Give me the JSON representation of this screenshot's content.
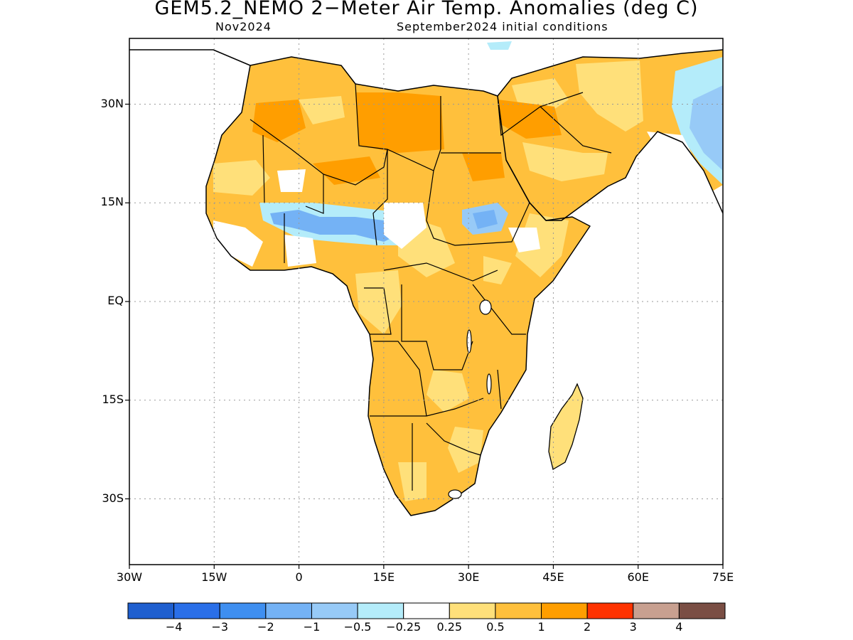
{
  "title": "GEM5.2_NEMO 2−Meter Air Temp. Anomalies (deg C)",
  "subtitle_left": "Nov2024",
  "subtitle_right": "September2024 initial conditions",
  "y_ticks": [
    {
      "label": "30N",
      "lat": 30
    },
    {
      "label": "15N",
      "lat": 15
    },
    {
      "label": "EQ",
      "lat": 0
    },
    {
      "label": "15S",
      "lat": -15
    },
    {
      "label": "30S",
      "lat": -30
    }
  ],
  "x_ticks": [
    {
      "label": "30W",
      "lon": -30
    },
    {
      "label": "15W",
      "lon": -15
    },
    {
      "label": "0",
      "lon": 0
    },
    {
      "label": "15E",
      "lon": 15
    },
    {
      "label": "30E",
      "lon": 30
    },
    {
      "label": "45E",
      "lon": 45
    },
    {
      "label": "60E",
      "lon": 60
    },
    {
      "label": "75E",
      "lon": 75
    }
  ],
  "map_extent": {
    "lon_min": -30,
    "lon_max": 75,
    "lat_min": -40,
    "lat_max": 40
  },
  "colorbar": {
    "colors": [
      "#1f5fcf",
      "#2a6fe8",
      "#3f8ff0",
      "#74b2f5",
      "#97caf7",
      "#b4ecfa",
      "#ffffff",
      "#ffe07a",
      "#ffc03c",
      "#ff9e00",
      "#ff3300",
      "#c8a090",
      "#7a4e44"
    ],
    "labels": [
      "−4",
      "−3",
      "−2",
      "−1",
      "−0.5",
      "−0.25",
      "0.25",
      "0.5",
      "1",
      "2",
      "3",
      "4"
    ]
  }
}
